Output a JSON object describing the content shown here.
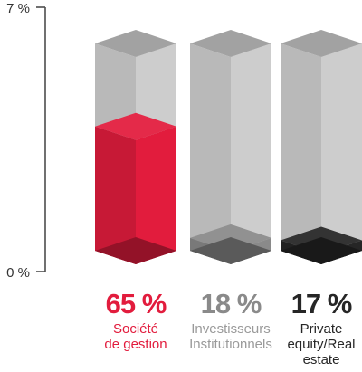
{
  "chart_data": {
    "type": "bar",
    "title": "",
    "xlabel": "",
    "ylabel": "",
    "ylim": [
      0,
      100
    ],
    "y_tick_labels": [
      "7 %",
      "0 %"
    ],
    "categories": [
      [
        "Société",
        "de gestion"
      ],
      [
        "Investisseurs",
        "Institutionnels"
      ],
      [
        "Private",
        "equity/Real",
        "estate"
      ]
    ],
    "value_labels": [
      "65 %",
      "18 %",
      "17 %"
    ],
    "values": [
      65,
      18,
      17
    ],
    "colors": [
      "#e21c3d",
      "#8a8a8a",
      "#262626"
    ],
    "grid": false,
    "legend": "none"
  }
}
